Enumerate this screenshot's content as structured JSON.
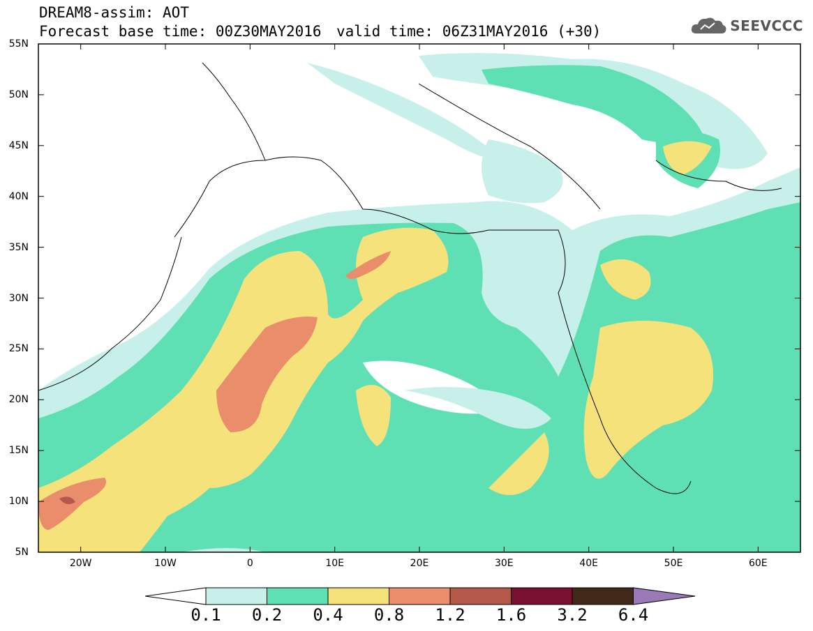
{
  "header": {
    "model_line": "DREAM8-assim: AOT",
    "base_time": "Forecast base time: 00Z30MAY2016",
    "valid_time": "valid time: 06Z31MAY2016 (+30)"
  },
  "logo": {
    "text": "SEEVCCC",
    "icon": "cloud-icon"
  },
  "map": {
    "lat_labels": [
      "55N",
      "50N",
      "45N",
      "40N",
      "35N",
      "30N",
      "25N",
      "20N",
      "15N",
      "10N",
      "5N"
    ],
    "lon_labels": [
      "20W",
      "10W",
      "0",
      "10E",
      "20E",
      "30E",
      "40E",
      "50E",
      "60E"
    ],
    "extent": {
      "lon": [
        -25,
        65
      ],
      "lat": [
        5,
        55
      ]
    }
  },
  "colorbar": {
    "labels": [
      "0.1",
      "0.2",
      "0.4",
      "0.8",
      "1.2",
      "1.6",
      "3.2",
      "6.4"
    ],
    "colors": [
      "#ffffff",
      "#c8f0ea",
      "#5fe0b4",
      "#f6e27a",
      "#e98d6a",
      "#b4584a",
      "#7a1030",
      "#42291a",
      "#9b78b6"
    ]
  }
}
